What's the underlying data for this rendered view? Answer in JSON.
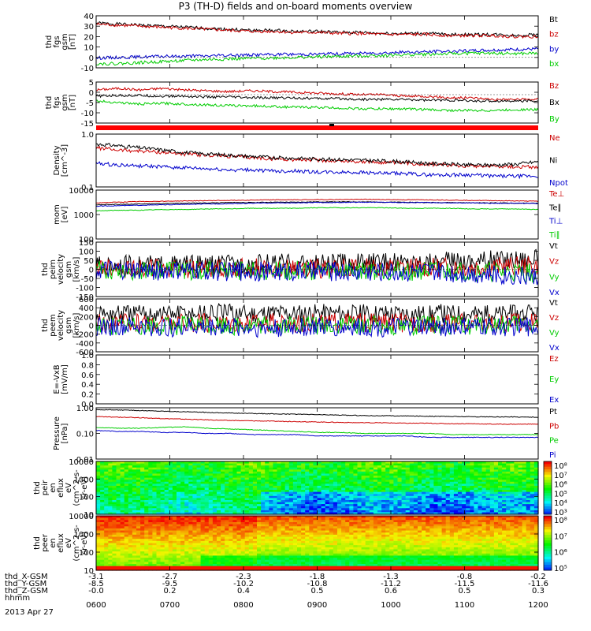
{
  "chart_data": {
    "type": "line",
    "title": "P3 (TH-D) fields and on-board moments overview",
    "date": "2013 Apr 27",
    "colorbar_ticks": [
      "10⁸",
      "10⁷",
      "10⁶",
      "10⁵",
      "10⁴",
      "10³"
    ],
    "colorbar2_ticks": [
      "10⁸",
      "10⁷",
      "10⁶",
      "10⁵"
    ],
    "x": {
      "ticks_hhmm": [
        "0600",
        "0700",
        "0800",
        "0900",
        "1000",
        "1100",
        "1200"
      ],
      "rows": [
        {
          "label": "thd_X-GSM",
          "values": [
            "-3.1",
            "-2.7",
            "-2.3",
            "-1.8",
            "-1.3",
            "-0.8",
            "-0.2"
          ]
        },
        {
          "label": "thd_Y-GSM",
          "values": [
            "-8.5",
            "-9.5",
            "-10.2",
            "-10.8",
            "-11.2",
            "-11.5",
            "-11.6"
          ]
        },
        {
          "label": "thd_Z-GSM",
          "values": [
            "-0.0",
            "0.2",
            "0.4",
            "0.5",
            "0.6",
            "0.5",
            "0.3"
          ]
        },
        {
          "label": "hhmm",
          "values": []
        }
      ]
    },
    "panels": [
      {
        "ylabel": [
          "thd",
          "fgs",
          "gsm",
          "[nT]"
        ],
        "ylim": [
          -10,
          40
        ],
        "yticks": [
          "40",
          "30",
          "20",
          "10",
          "0",
          "-10"
        ],
        "series": [
          {
            "name": "Bt",
            "color": "#000000",
            "values": [
              33,
              32,
              31,
              30,
              29,
              28,
              27,
              26,
              26,
              25,
              25,
              24,
              24,
              23,
              23,
              23,
              22,
              22,
              22,
              21,
              22
            ]
          },
          {
            "name": "bz",
            "color": "#cc0000",
            "values": [
              32,
              31,
              30,
              29,
              28,
              27,
              26,
              25,
              25,
              24,
              24,
              23,
              23,
              22,
              22,
              22,
              21,
              21,
              21,
              20,
              20
            ]
          },
          {
            "name": "by",
            "color": "#0000cc",
            "values": [
              -0.5,
              0,
              0.5,
              1,
              1.2,
              1.5,
              2,
              2.5,
              2.8,
              3,
              3.2,
              3.5,
              4,
              4.5,
              5,
              5.5,
              6,
              6.5,
              7,
              7.5,
              8
            ]
          },
          {
            "name": "bx",
            "color": "#00cc00",
            "values": [
              -6,
              -6,
              -5,
              -4,
              -3,
              -2,
              -1.5,
              -1,
              -0.5,
              0,
              0.5,
              1,
              1.5,
              2,
              2.5,
              3,
              3.5,
              4,
              4,
              3.5,
              4
            ]
          }
        ]
      },
      {
        "ylabel": [
          "thd",
          "fgs",
          "gsm",
          "[nT]"
        ],
        "ylim": [
          -18,
          8
        ],
        "yticks": [
          "5",
          "0",
          "-5",
          "-10",
          "-15"
        ],
        "series": [
          {
            "name": "Bz",
            "color": "#cc0000",
            "values": [
              3,
              4,
              3,
              4,
              3,
              2.5,
              2,
              2.5,
              2,
              1.5,
              1,
              0.5,
              0,
              0,
              -1,
              -1,
              -2,
              -2,
              -3,
              -3,
              -3
            ]
          },
          {
            "name": "Bx",
            "color": "#000000",
            "values": [
              -1,
              -0.5,
              -0.5,
              -1,
              -1,
              -1.5,
              -1.5,
              -2,
              -2,
              -2,
              -2.5,
              -2.5,
              -3,
              -3,
              -3,
              -3.5,
              -3.5,
              -4,
              -4,
              -4,
              -4
            ]
          },
          {
            "name": "By",
            "color": "#00cc00",
            "values": [
              -4,
              -5,
              -6,
              -5.5,
              -6,
              -6.5,
              -7,
              -7,
              -7.5,
              -8,
              -8,
              -8.5,
              -9,
              -9,
              -9,
              -9.5,
              -10,
              -10,
              -10,
              -9.5,
              -9.5
            ]
          }
        ]
      },
      {
        "ylabel": [
          "Density",
          "[cm^-3]"
        ],
        "ylim": [
          0.1,
          1.0
        ],
        "ylog": true,
        "yticks": [
          "1.0",
          "0.1"
        ],
        "series": [
          {
            "name": "Ne",
            "color": "#cc0000",
            "values": [
              0.55,
              0.5,
              0.48,
              0.45,
              0.42,
              0.4,
              0.38,
              0.36,
              0.34,
              0.33,
              0.32,
              0.31,
              0.3,
              0.29,
              0.28,
              0.27,
              0.26,
              0.25,
              0.25,
              0.24,
              0.24
            ]
          },
          {
            "name": "Ni",
            "color": "#000000",
            "values": [
              0.65,
              0.6,
              0.55,
              0.5,
              0.45,
              0.42,
              0.4,
              0.38,
              0.36,
              0.35,
              0.34,
              0.33,
              0.32,
              0.31,
              0.3,
              0.28,
              0.27,
              0.26,
              0.26,
              0.27,
              0.3
            ]
          },
          {
            "name": "Npot",
            "color": "#0000cc",
            "values": [
              0.28,
              0.26,
              0.25,
              0.24,
              0.23,
              0.22,
              0.21,
              0.21,
              0.2,
              0.2,
              0.19,
              0.19,
              0.19,
              0.18,
              0.18,
              0.17,
              0.17,
              0.17,
              0.16,
              0.16,
              0.16
            ]
          }
        ]
      },
      {
        "ylabel": [
          "mom",
          "[eV]"
        ],
        "ylim": [
          100,
          10000
        ],
        "ylog": true,
        "yticks": [
          "10000",
          "1000",
          "100"
        ],
        "series": [
          {
            "name": "Te⊥",
            "color": "#cc0000",
            "values": [
              3000,
              3200,
              3400,
              3500,
              3600,
              3700,
              3800,
              3900,
              4000,
              4000,
              4100,
              4100,
              4200,
              4100,
              4000,
              4000,
              3900,
              3800,
              3700,
              3600,
              3500
            ]
          },
          {
            "name": "Te∥",
            "color": "#000000",
            "values": [
              2500,
              2600,
              2700,
              2800,
              2900,
              3000,
              3100,
              3100,
              3200,
              3200,
              3300,
              3300,
              3300,
              3200,
              3200,
              3100,
              3100,
              3000,
              3000,
              2900,
              2900
            ]
          },
          {
            "name": "Ti⊥",
            "color": "#0000cc",
            "values": [
              2200,
              2300,
              2400,
              2500,
              2600,
              2700,
              2800,
              2900,
              3000,
              3000,
              3100,
              3100,
              3200,
              3200,
              3100,
              3100,
              3000,
              3000,
              2900,
              2900,
              2800
            ]
          },
          {
            "name": "Ti∥",
            "color": "#00cc00",
            "values": [
              1400,
              1500,
              1500,
              1600,
              1600,
              1700,
              1700,
              1800,
              1800,
              1800,
              1900,
              1900,
              1900,
              1900,
              1800,
              1800,
              1800,
              1700,
              1700,
              1700,
              1600
            ]
          }
        ]
      },
      {
        "ylabel": [
          "thd",
          "peim",
          "velocity",
          "gsm",
          "[km/s]"
        ],
        "ylim": [
          -150,
          150
        ],
        "yticks": [
          "150",
          "100",
          "50",
          "0",
          "-50",
          "-100",
          "-150"
        ],
        "series": [
          {
            "name": "Vt",
            "color": "#000000",
            "values": [
              20,
              25,
              22,
              24,
              26,
              25,
              28,
              30,
              32,
              34,
              30,
              35,
              38,
              36,
              40,
              42,
              45,
              50,
              55,
              60,
              60
            ]
          },
          {
            "name": "Vz",
            "color": "#cc0000",
            "values": [
              5,
              4,
              6,
              3,
              5,
              4,
              6,
              8,
              5,
              7,
              6,
              8,
              10,
              8,
              12,
              10,
              14,
              12,
              15,
              18,
              20
            ]
          },
          {
            "name": "Vy",
            "color": "#00cc00",
            "values": [
              -5,
              -4,
              -6,
              -3,
              -5,
              -4,
              -6,
              -5,
              -7,
              -6,
              -8,
              -7,
              -9,
              -8,
              -10,
              -9,
              -12,
              -14,
              -16,
              -18,
              -20
            ]
          },
          {
            "name": "Vx",
            "color": "#0000cc",
            "values": [
              -8,
              -7,
              -9,
              -8,
              -10,
              -9,
              -11,
              -10,
              -12,
              -11,
              -13,
              -12,
              -14,
              -13,
              -15,
              -14,
              -18,
              -22,
              -28,
              -35,
              -40
            ]
          }
        ]
      },
      {
        "ylabel": [
          "thd",
          "peem",
          "velocity",
          "gsm",
          "[km/s]"
        ],
        "ylim": [
          -600,
          600
        ],
        "yticks": [
          "600",
          "400",
          "200",
          "0",
          "-200",
          "-400",
          "-600"
        ],
        "series": [
          {
            "name": "Vt",
            "color": "#000000",
            "values": [
              250,
              260,
              250,
              270,
              260,
              270,
              280,
              270,
              290,
              280,
              290,
              280,
              270,
              280,
              270,
              260,
              270,
              260,
              250,
              260,
              250
            ]
          },
          {
            "name": "Vz",
            "color": "#cc0000",
            "values": [
              50,
              60,
              50,
              70,
              60,
              50,
              60,
              70,
              60,
              50,
              60,
              70,
              60,
              50,
              60,
              50,
              60,
              50,
              50,
              60,
              50
            ]
          },
          {
            "name": "Vy",
            "color": "#00cc00",
            "values": [
              0,
              -10,
              10,
              -20,
              0,
              10,
              -10,
              0,
              -20,
              10,
              0,
              -10,
              10,
              0,
              -10,
              0,
              10,
              -10,
              0,
              10,
              0
            ]
          },
          {
            "name": "Vx",
            "color": "#0000cc",
            "values": [
              -30,
              -40,
              -30,
              -50,
              -40,
              -30,
              -40,
              -50,
              -60,
              -50,
              -40,
              -50,
              -40,
              -50,
              -40,
              -30,
              -40,
              -30,
              -40,
              -30,
              -40
            ]
          }
        ]
      },
      {
        "ylabel": [
          "E=-VxB",
          "[mV/m]"
        ],
        "ylim": [
          0,
          1.0
        ],
        "yticks": [
          "1.0",
          "0.8",
          "0.6",
          "0.4",
          "0.2",
          "0.0"
        ],
        "series": [
          {
            "name": "Ez",
            "color": "#cc0000",
            "values": []
          },
          {
            "name": "Ey",
            "color": "#00cc00",
            "values": []
          },
          {
            "name": "Ex",
            "color": "#0000cc",
            "values": []
          }
        ]
      },
      {
        "ylabel": [
          "Pressure",
          "[nPa]"
        ],
        "ylim": [
          0.01,
          1.0
        ],
        "ylog": true,
        "yticks": [
          "1.00",
          "0.10",
          "0.01"
        ],
        "series": [
          {
            "name": "Pt",
            "color": "#000000",
            "values": [
              0.85,
              0.82,
              0.78,
              0.74,
              0.7,
              0.66,
              0.63,
              0.6,
              0.58,
              0.56,
              0.54,
              0.52,
              0.5,
              0.49,
              0.48,
              0.47,
              0.46,
              0.45,
              0.44,
              0.44,
              0.43
            ]
          },
          {
            "name": "Pb",
            "color": "#cc0000",
            "values": [
              0.45,
              0.43,
              0.41,
              0.38,
              0.36,
              0.34,
              0.32,
              0.31,
              0.3,
              0.29,
              0.28,
              0.27,
              0.26,
              0.26,
              0.25,
              0.25,
              0.24,
              0.24,
              0.23,
              0.23,
              0.23
            ]
          },
          {
            "name": "Pe",
            "color": "#00cc00",
            "values": [
              0.17,
              0.16,
              0.16,
              0.17,
              0.18,
              0.16,
              0.15,
              0.14,
              0.13,
              0.12,
              0.11,
              0.11,
              0.1,
              0.1,
              0.1,
              0.1,
              0.09,
              0.09,
              0.09,
              0.09,
              0.09
            ]
          },
          {
            "name": "Pi",
            "color": "#0000cc",
            "values": [
              0.13,
              0.12,
              0.12,
              0.11,
              0.11,
              0.1,
              0.1,
              0.09,
              0.09,
              0.09,
              0.08,
              0.08,
              0.08,
              0.08,
              0.08,
              0.07,
              0.07,
              0.07,
              0.07,
              0.07,
              0.07
            ]
          }
        ]
      },
      {
        "type": "heatmap",
        "ylabel": [
          "thd",
          "peir",
          "en",
          "eflux",
          "eV",
          "(cm^2-s-",
          "sr-eV)"
        ],
        "ylim": [
          10,
          10000
        ],
        "ylog": true,
        "yticks": [
          "10000",
          "1000",
          "100",
          "10"
        ]
      },
      {
        "type": "heatmap",
        "ylabel": [
          "thd",
          "peer",
          "en",
          "eflux",
          "eV",
          "(cm^2-s-",
          "sr-eV)"
        ],
        "ylim": [
          10,
          10000
        ],
        "ylog": true,
        "yticks": [
          "10000",
          "1000",
          "100",
          "10"
        ]
      }
    ]
  }
}
